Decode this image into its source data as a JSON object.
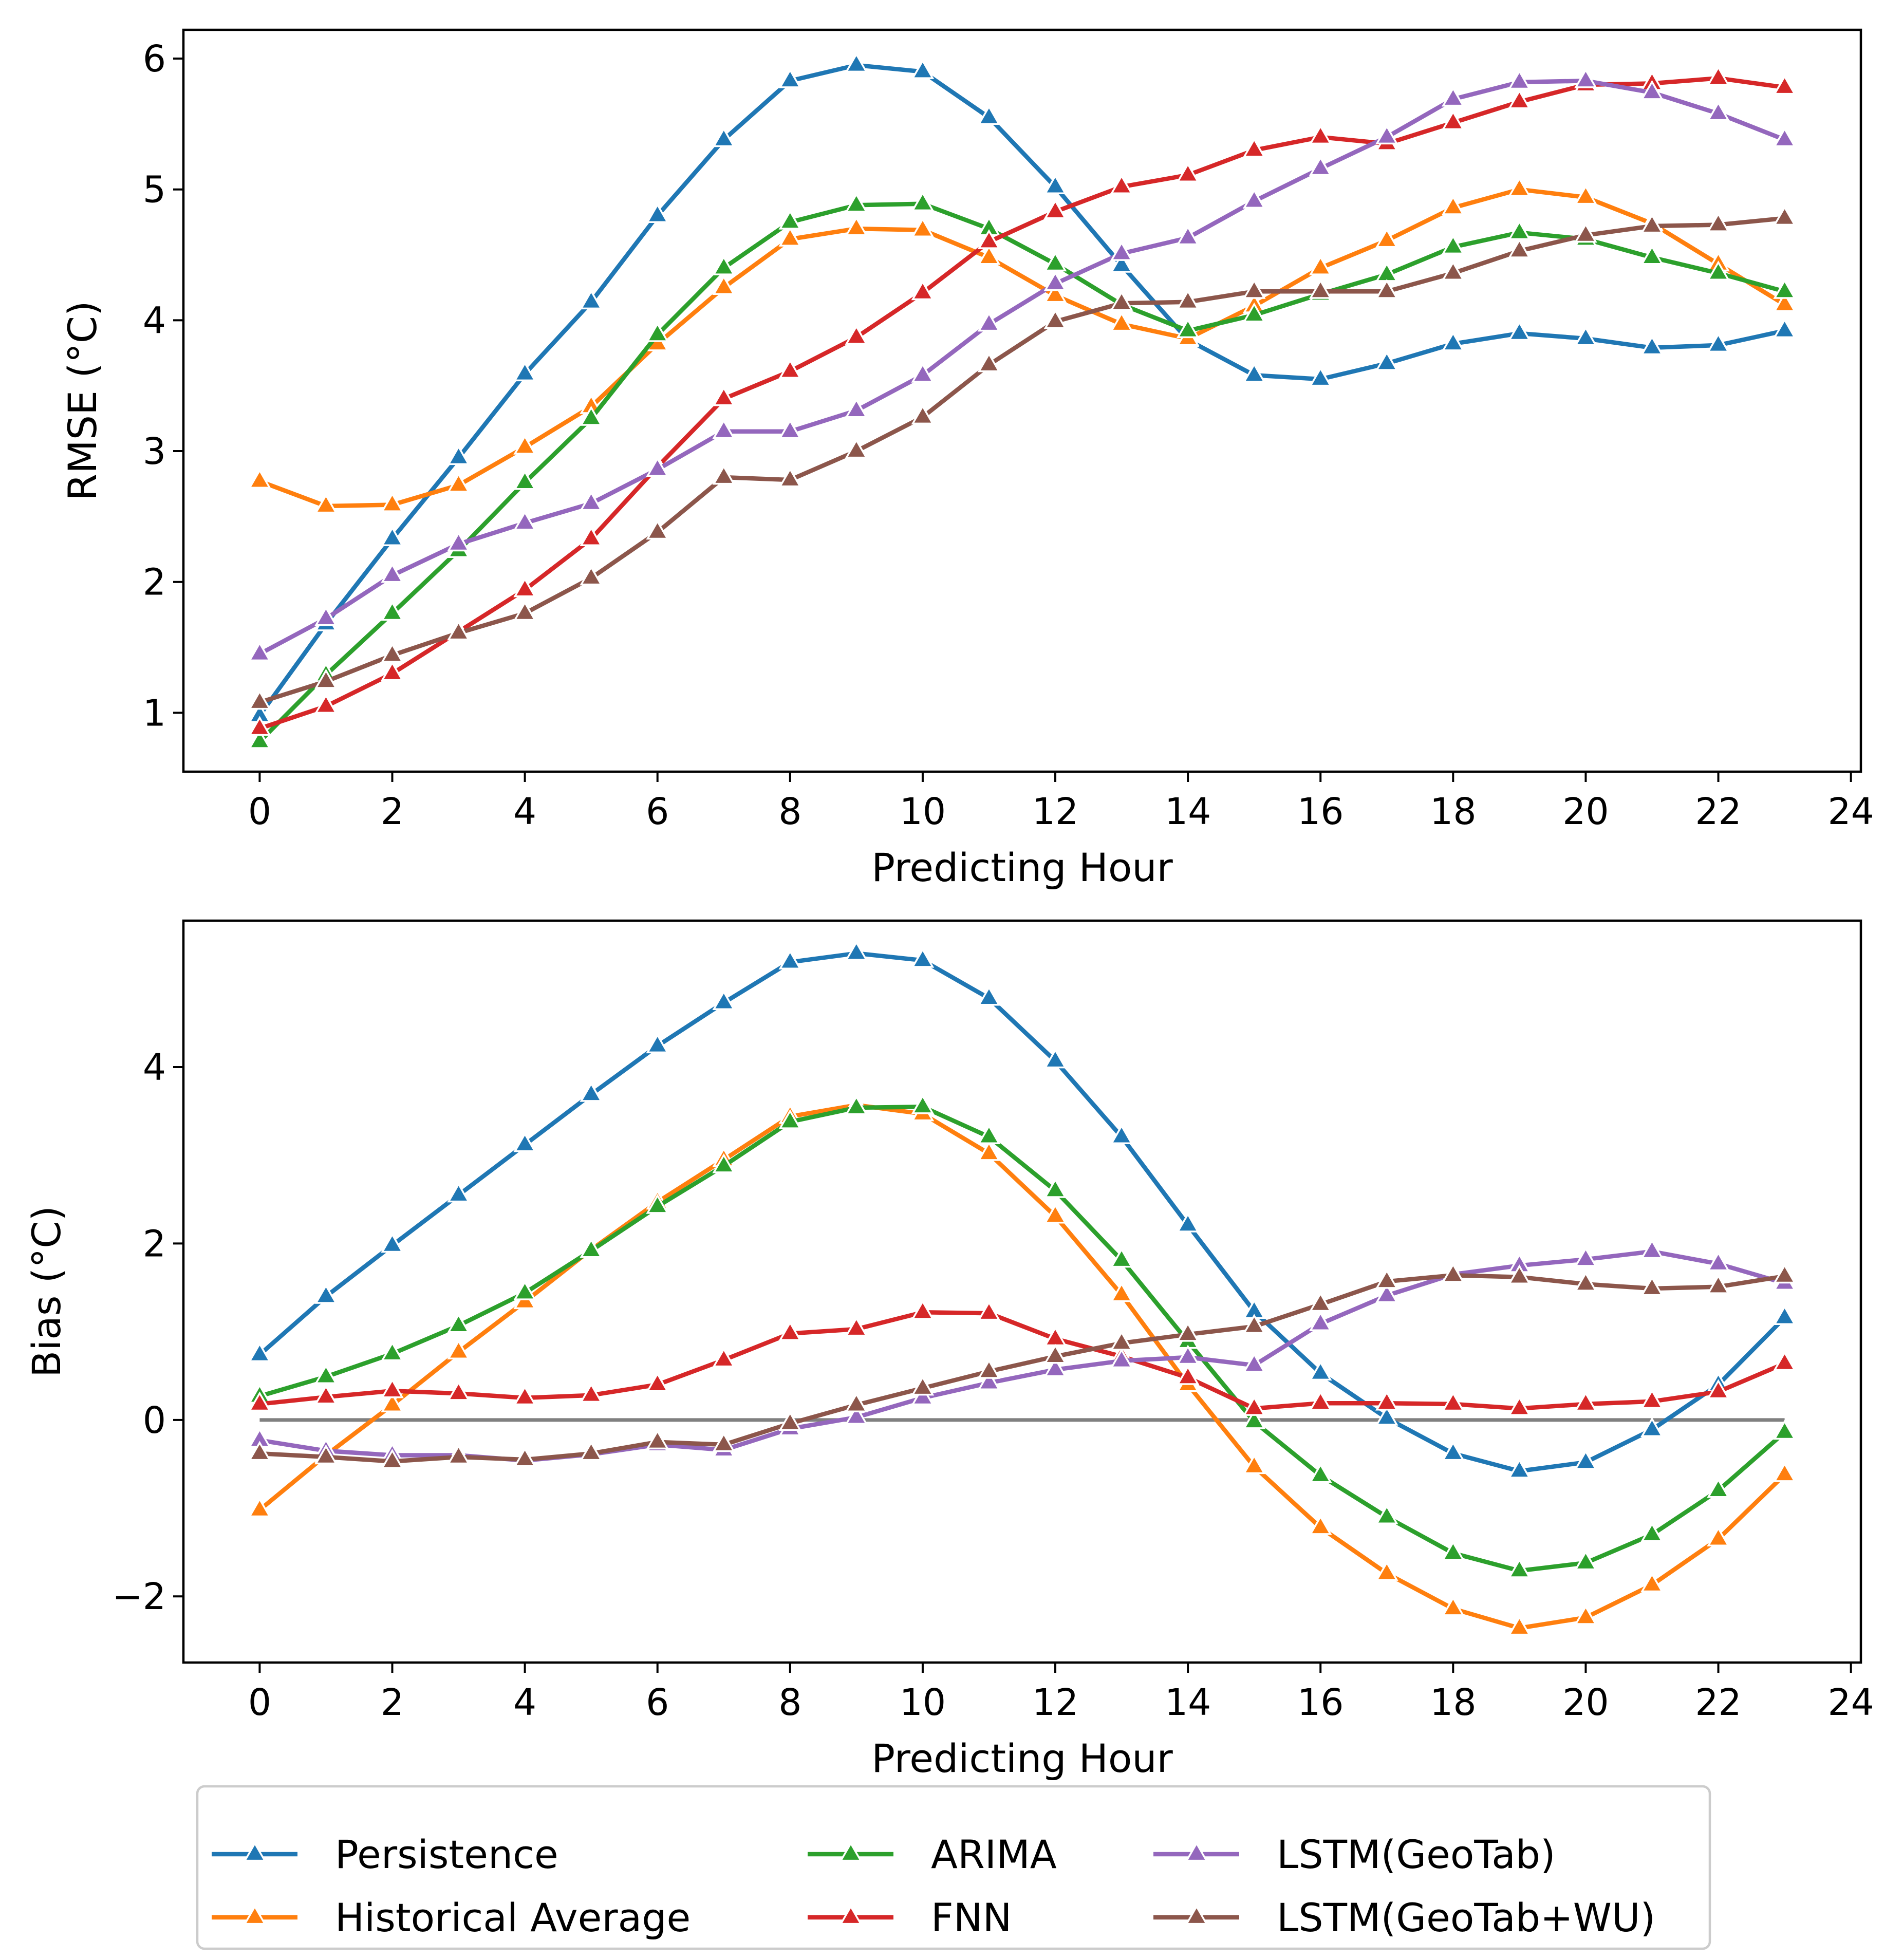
{
  "chart_data": [
    {
      "id": "rmse",
      "type": "line",
      "title": "",
      "xlabel": "Predicting Hour",
      "ylabel": "RMSE (°C)",
      "xlim": [
        -1.15,
        24.15
      ],
      "ylim": [
        0.55,
        6.22
      ],
      "xticks": [
        0,
        2,
        4,
        6,
        8,
        10,
        12,
        14,
        16,
        18,
        20,
        22,
        24
      ],
      "yticks": [
        1,
        2,
        3,
        4,
        5,
        6
      ],
      "ytick_labels": [
        "1",
        "2",
        "3",
        "4",
        "5",
        "6"
      ],
      "x": [
        0,
        1,
        2,
        3,
        4,
        5,
        6,
        7,
        8,
        9,
        10,
        11,
        12,
        13,
        14,
        15,
        16,
        17,
        18,
        19,
        20,
        21,
        22,
        23
      ],
      "grid": false,
      "series": [
        {
          "name": "Persistence",
          "color": "#1f77b4",
          "values": [
            0.98,
            1.68,
            2.33,
            2.95,
            3.59,
            4.14,
            4.8,
            5.38,
            5.83,
            5.95,
            5.9,
            5.55,
            5.02,
            4.42,
            3.85,
            3.58,
            3.55,
            3.67,
            3.82,
            3.9,
            3.86,
            3.79,
            3.81,
            3.92
          ]
        },
        {
          "name": "Historical Average",
          "color": "#ff7f0e",
          "values": [
            2.77,
            2.58,
            2.59,
            2.74,
            3.03,
            3.34,
            3.82,
            4.25,
            4.62,
            4.7,
            4.69,
            4.48,
            4.19,
            3.97,
            3.86,
            4.11,
            4.4,
            4.61,
            4.86,
            5.0,
            4.94,
            4.74,
            4.43,
            4.12
          ]
        },
        {
          "name": "ARIMA",
          "color": "#2ca02c",
          "values": [
            0.78,
            1.29,
            1.76,
            2.24,
            2.76,
            3.25,
            3.89,
            4.4,
            4.75,
            4.88,
            4.89,
            4.7,
            4.43,
            4.12,
            3.92,
            4.04,
            4.2,
            4.35,
            4.56,
            4.67,
            4.62,
            4.48,
            4.36,
            4.22
          ]
        },
        {
          "name": "FNN",
          "color": "#d62728",
          "values": [
            0.88,
            1.05,
            1.3,
            1.62,
            1.94,
            2.33,
            2.88,
            3.4,
            3.61,
            3.87,
            4.21,
            4.6,
            4.83,
            5.02,
            5.11,
            5.3,
            5.4,
            5.35,
            5.51,
            5.67,
            5.8,
            5.81,
            5.85,
            5.78
          ]
        },
        {
          "name": "LSTM(GeoTab)",
          "color": "#9467bd",
          "values": [
            1.45,
            1.72,
            2.05,
            2.29,
            2.45,
            2.6,
            2.86,
            3.15,
            3.15,
            3.31,
            3.58,
            3.97,
            4.28,
            4.51,
            4.63,
            4.91,
            5.16,
            5.4,
            5.69,
            5.82,
            5.83,
            5.74,
            5.58,
            5.38
          ]
        },
        {
          "name": "LSTM(GeoTab+WU)",
          "color": "#8c564b",
          "values": [
            1.08,
            1.24,
            1.44,
            1.61,
            1.76,
            2.03,
            2.38,
            2.8,
            2.78,
            3.0,
            3.26,
            3.66,
            3.99,
            4.13,
            4.14,
            4.22,
            4.22,
            4.22,
            4.36,
            4.53,
            4.65,
            4.72,
            4.73,
            4.78
          ]
        }
      ]
    },
    {
      "id": "bias",
      "type": "line",
      "title": "",
      "xlabel": "Predicting Hour",
      "ylabel": "Bias (°C)",
      "xlim": [
        -1.15,
        24.15
      ],
      "ylim": [
        -2.75,
        5.66
      ],
      "xticks": [
        0,
        2,
        4,
        6,
        8,
        10,
        12,
        14,
        16,
        18,
        20,
        22,
        24
      ],
      "yticks": [
        -2,
        0,
        2,
        4
      ],
      "ytick_labels": [
        "−2",
        "0",
        "2",
        "4"
      ],
      "x": [
        0,
        1,
        2,
        3,
        4,
        5,
        6,
        7,
        8,
        9,
        10,
        11,
        12,
        13,
        14,
        15,
        16,
        17,
        18,
        19,
        20,
        21,
        22,
        23
      ],
      "grid": false,
      "zero_line": {
        "value": 0,
        "color": "#808080"
      },
      "series": [
        {
          "name": "Persistence",
          "color": "#1f77b4",
          "values": [
            0.74,
            1.4,
            1.98,
            2.55,
            3.12,
            3.69,
            4.24,
            4.73,
            5.19,
            5.29,
            5.21,
            4.78,
            4.07,
            3.21,
            2.21,
            1.23,
            0.53,
            0.02,
            -0.38,
            -0.58,
            -0.48,
            -0.11,
            0.4,
            1.16
          ]
        },
        {
          "name": "Historical Average",
          "color": "#ff7f0e",
          "values": [
            -1.02,
            -0.4,
            0.17,
            0.77,
            1.34,
            1.93,
            2.47,
            2.95,
            3.44,
            3.57,
            3.47,
            3.02,
            2.31,
            1.42,
            0.4,
            -0.53,
            -1.22,
            -1.74,
            -2.14,
            -2.36,
            -2.24,
            -1.87,
            -1.35,
            -0.62
          ]
        },
        {
          "name": "ARIMA",
          "color": "#2ca02c",
          "values": [
            0.27,
            0.49,
            0.75,
            1.07,
            1.44,
            1.92,
            2.42,
            2.88,
            3.38,
            3.54,
            3.55,
            3.21,
            2.6,
            1.81,
            0.89,
            -0.02,
            -0.63,
            -1.1,
            -1.51,
            -1.71,
            -1.62,
            -1.3,
            -0.8,
            -0.14
          ]
        },
        {
          "name": "FNN",
          "color": "#d62728",
          "values": [
            0.18,
            0.26,
            0.33,
            0.3,
            0.25,
            0.28,
            0.4,
            0.68,
            0.98,
            1.03,
            1.22,
            1.21,
            0.92,
            0.72,
            0.48,
            0.13,
            0.19,
            0.19,
            0.18,
            0.13,
            0.18,
            0.21,
            0.32,
            0.64
          ]
        },
        {
          "name": "LSTM(GeoTab)",
          "color": "#9467bd",
          "values": [
            -0.23,
            -0.35,
            -0.4,
            -0.4,
            -0.46,
            -0.39,
            -0.28,
            -0.34,
            -0.1,
            0.03,
            0.25,
            0.42,
            0.57,
            0.67,
            0.71,
            0.62,
            1.09,
            1.41,
            1.65,
            1.75,
            1.82,
            1.91,
            1.77,
            1.55
          ]
        },
        {
          "name": "LSTM(GeoTab+WU)",
          "color": "#8c564b",
          "values": [
            -0.38,
            -0.42,
            -0.47,
            -0.42,
            -0.45,
            -0.38,
            -0.25,
            -0.28,
            -0.04,
            0.17,
            0.36,
            0.55,
            0.72,
            0.87,
            0.97,
            1.06,
            1.31,
            1.57,
            1.64,
            1.62,
            1.54,
            1.49,
            1.51,
            1.63
          ]
        }
      ]
    }
  ],
  "legend": {
    "placement": "bottom-center",
    "columns": 3,
    "entries": [
      "Persistence",
      "Historical Average",
      "ARIMA",
      "FNN",
      "LSTM(GeoTab)",
      "LSTM(GeoTab+WU)"
    ]
  }
}
